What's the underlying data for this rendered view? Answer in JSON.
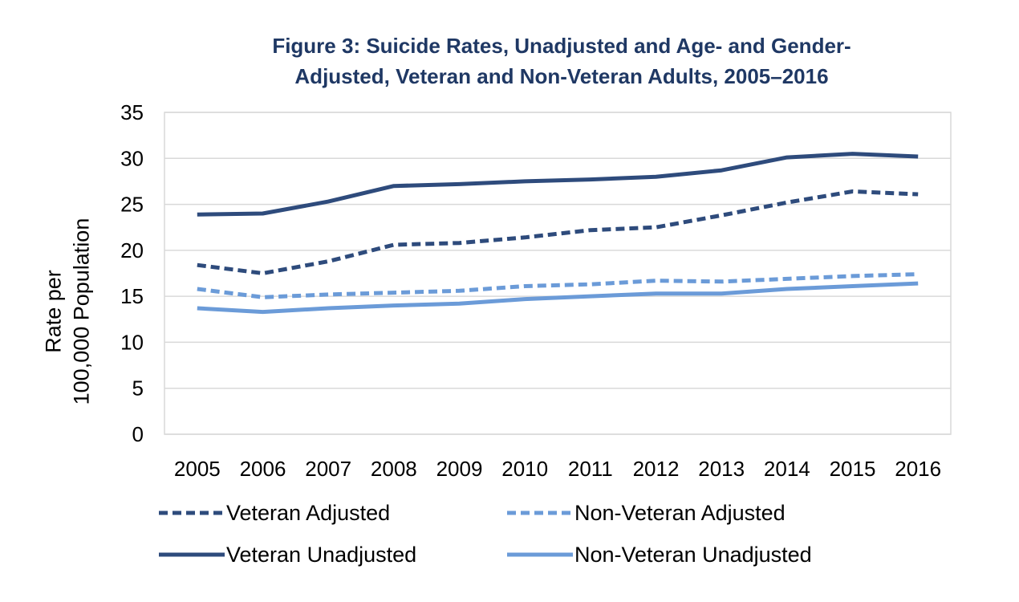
{
  "chart_data": {
    "type": "line",
    "title_line1": "Figure 3: Suicide Rates, Unadjusted and Age- and Gender-",
    "title_line2": "Adjusted, Veteran and Non-Veteran Adults, 2005–2016",
    "ylabel_line1": "Rate per",
    "ylabel_line2": "100,000 Population",
    "xlabel": "",
    "ylim": [
      0,
      35
    ],
    "yticks": [
      "0",
      "5",
      "10",
      "15",
      "20",
      "25",
      "30",
      "35"
    ],
    "grid": true,
    "legend_position": "bottom",
    "categories": [
      "2005",
      "2006",
      "2007",
      "2008",
      "2009",
      "2010",
      "2011",
      "2012",
      "2013",
      "2014",
      "2015",
      "2016"
    ],
    "series": [
      {
        "name": "Veteran Adjusted",
        "color": "#2e4b7c",
        "style": "dashed",
        "values": [
          18.4,
          17.5,
          18.8,
          20.6,
          20.8,
          21.4,
          22.2,
          22.5,
          23.8,
          25.2,
          26.4,
          26.1
        ]
      },
      {
        "name": "Non-Veteran Adjusted",
        "color": "#6b9bd8",
        "style": "dashed",
        "values": [
          15.8,
          14.9,
          15.2,
          15.4,
          15.6,
          16.1,
          16.3,
          16.7,
          16.6,
          16.9,
          17.2,
          17.4
        ]
      },
      {
        "name": "Veteran Unadjusted",
        "color": "#2e4b7c",
        "style": "solid",
        "values": [
          23.9,
          24.0,
          25.3,
          27.0,
          27.2,
          27.5,
          27.7,
          28.0,
          28.7,
          30.1,
          30.5,
          30.2
        ]
      },
      {
        "name": "Non-Veteran Unadjusted",
        "color": "#6b9bd8",
        "style": "solid",
        "values": [
          13.7,
          13.3,
          13.7,
          14.0,
          14.2,
          14.7,
          15.0,
          15.3,
          15.3,
          15.8,
          16.1,
          16.4
        ]
      }
    ]
  }
}
